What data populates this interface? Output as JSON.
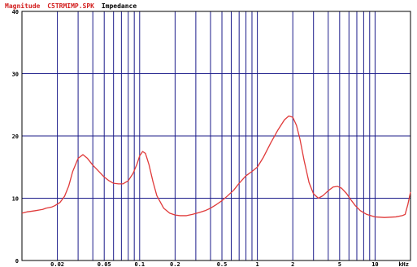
{
  "title": {
    "prefix": "Magnitude",
    "file": "C5TRMIMP.SPK",
    "measure": "Impedance"
  },
  "colors": {
    "title_red": "#d21e1e",
    "title_black": "#000000",
    "grid": "#1c1c8a",
    "frame": "#000000",
    "curve": "#e03a3a",
    "background": "#ffffff"
  },
  "chart_data": {
    "type": "line",
    "x_scale": "log",
    "xlim": [
      0.01,
      20
    ],
    "ylim": [
      0,
      40
    ],
    "grid": true,
    "y_ticks": [
      "0",
      "10",
      "20",
      "30",
      "40"
    ],
    "y_tick_values": [
      0,
      10,
      20,
      30,
      40
    ],
    "x_ticks": [
      "0.02",
      "0.05",
      "0.1",
      "0.2",
      "0.5",
      "1",
      "2",
      "5",
      "10",
      "kHz"
    ],
    "x_tick_values": [
      0.02,
      0.05,
      0.1,
      0.2,
      0.5,
      1,
      2,
      5,
      10,
      20
    ],
    "series": [
      {
        "color": "#e03a3a",
        "x": [
          0.01,
          0.011,
          0.012,
          0.013,
          0.014,
          0.015,
          0.016,
          0.017,
          0.018,
          0.019,
          0.021,
          0.023,
          0.025,
          0.027,
          0.03,
          0.033,
          0.036,
          0.04,
          0.045,
          0.05,
          0.055,
          0.06,
          0.066,
          0.072,
          0.08,
          0.088,
          0.095,
          0.1,
          0.106,
          0.112,
          0.12,
          0.13,
          0.14,
          0.16,
          0.18,
          0.2,
          0.22,
          0.25,
          0.28,
          0.32,
          0.36,
          0.4,
          0.45,
          0.5,
          0.56,
          0.63,
          0.7,
          0.8,
          0.9,
          1.0,
          1.12,
          1.3,
          1.5,
          1.7,
          1.85,
          2.0,
          2.15,
          2.3,
          2.5,
          2.75,
          3.0,
          3.3,
          3.6,
          4.0,
          4.4,
          4.8,
          5.2,
          5.7,
          6.2,
          6.8,
          7.5,
          8.5,
          10,
          12,
          15,
          17,
          18,
          19,
          20
        ],
        "y": [
          7.6,
          7.8,
          7.9,
          8.0,
          8.1,
          8.2,
          8.4,
          8.5,
          8.6,
          8.8,
          9.3,
          10.3,
          12.0,
          14.3,
          16.4,
          17.0,
          16.4,
          15.3,
          14.3,
          13.4,
          12.8,
          12.4,
          12.3,
          12.3,
          12.8,
          14.0,
          15.5,
          16.8,
          17.5,
          17.2,
          15.4,
          12.6,
          10.4,
          8.4,
          7.6,
          7.3,
          7.2,
          7.2,
          7.4,
          7.7,
          8.0,
          8.4,
          9.0,
          9.6,
          10.4,
          11.3,
          12.4,
          13.6,
          14.3,
          15.0,
          16.5,
          18.9,
          21.0,
          22.6,
          23.2,
          23.0,
          21.7,
          19.5,
          16.0,
          12.5,
          10.7,
          10.0,
          10.4,
          11.2,
          11.8,
          11.9,
          11.6,
          10.8,
          9.8,
          8.8,
          8.0,
          7.4,
          7.0,
          6.9,
          7.0,
          7.2,
          7.4,
          9.0,
          11.0
        ]
      }
    ]
  }
}
